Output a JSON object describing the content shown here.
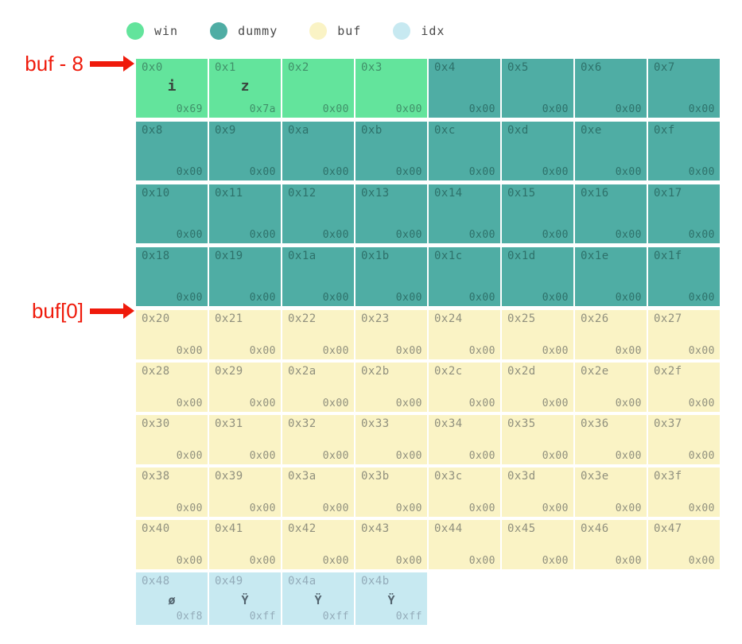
{
  "legend": {
    "items": [
      {
        "label": "win",
        "color": "#63e49c"
      },
      {
        "label": "dummy",
        "color": "#4fada4"
      },
      {
        "label": "buf",
        "color": "#faf3c5"
      },
      {
        "label": "idx",
        "color": "#c7e9f1"
      }
    ]
  },
  "annotations": [
    {
      "label": "buf - 8",
      "target": "0x0"
    },
    {
      "label": "buf[0]",
      "target": "0x20"
    }
  ],
  "colors": {
    "win": "#63e49c",
    "dummy": "#4fada4",
    "buf": "#faf3c5",
    "idx": "#c7e9f1",
    "annotation_red": "#ef1a0b"
  },
  "grid": {
    "rows": [
      {
        "size": "tall",
        "cells": [
          {
            "addr": "0x0",
            "char": "i",
            "value": "0x69",
            "region": "win"
          },
          {
            "addr": "0x1",
            "char": "z",
            "value": "0x7a",
            "region": "win"
          },
          {
            "addr": "0x2",
            "char": "",
            "value": "0x00",
            "region": "win"
          },
          {
            "addr": "0x3",
            "char": "",
            "value": "0x00",
            "region": "win"
          },
          {
            "addr": "0x4",
            "char": "",
            "value": "0x00",
            "region": "dummy"
          },
          {
            "addr": "0x5",
            "char": "",
            "value": "0x00",
            "region": "dummy"
          },
          {
            "addr": "0x6",
            "char": "",
            "value": "0x00",
            "region": "dummy"
          },
          {
            "addr": "0x7",
            "char": "",
            "value": "0x00",
            "region": "dummy"
          }
        ]
      },
      {
        "size": "tall",
        "cells": [
          {
            "addr": "0x8",
            "char": "",
            "value": "0x00",
            "region": "dummy"
          },
          {
            "addr": "0x9",
            "char": "",
            "value": "0x00",
            "region": "dummy"
          },
          {
            "addr": "0xa",
            "char": "",
            "value": "0x00",
            "region": "dummy"
          },
          {
            "addr": "0xb",
            "char": "",
            "value": "0x00",
            "region": "dummy"
          },
          {
            "addr": "0xc",
            "char": "",
            "value": "0x00",
            "region": "dummy"
          },
          {
            "addr": "0xd",
            "char": "",
            "value": "0x00",
            "region": "dummy"
          },
          {
            "addr": "0xe",
            "char": "",
            "value": "0x00",
            "region": "dummy"
          },
          {
            "addr": "0xf",
            "char": "",
            "value": "0x00",
            "region": "dummy"
          }
        ]
      },
      {
        "size": "tall",
        "cells": [
          {
            "addr": "0x10",
            "char": "",
            "value": "0x00",
            "region": "dummy"
          },
          {
            "addr": "0x11",
            "char": "",
            "value": "0x00",
            "region": "dummy"
          },
          {
            "addr": "0x12",
            "char": "",
            "value": "0x00",
            "region": "dummy"
          },
          {
            "addr": "0x13",
            "char": "",
            "value": "0x00",
            "region": "dummy"
          },
          {
            "addr": "0x14",
            "char": "",
            "value": "0x00",
            "region": "dummy"
          },
          {
            "addr": "0x15",
            "char": "",
            "value": "0x00",
            "region": "dummy"
          },
          {
            "addr": "0x16",
            "char": "",
            "value": "0x00",
            "region": "dummy"
          },
          {
            "addr": "0x17",
            "char": "",
            "value": "0x00",
            "region": "dummy"
          }
        ]
      },
      {
        "size": "tall",
        "cells": [
          {
            "addr": "0x18",
            "char": "",
            "value": "0x00",
            "region": "dummy"
          },
          {
            "addr": "0x19",
            "char": "",
            "value": "0x00",
            "region": "dummy"
          },
          {
            "addr": "0x1a",
            "char": "",
            "value": "0x00",
            "region": "dummy"
          },
          {
            "addr": "0x1b",
            "char": "",
            "value": "0x00",
            "region": "dummy"
          },
          {
            "addr": "0x1c",
            "char": "",
            "value": "0x00",
            "region": "dummy"
          },
          {
            "addr": "0x1d",
            "char": "",
            "value": "0x00",
            "region": "dummy"
          },
          {
            "addr": "0x1e",
            "char": "",
            "value": "0x00",
            "region": "dummy"
          },
          {
            "addr": "0x1f",
            "char": "",
            "value": "0x00",
            "region": "dummy"
          }
        ]
      },
      {
        "size": "short",
        "cells": [
          {
            "addr": "0x20",
            "char": "",
            "value": "0x00",
            "region": "buf"
          },
          {
            "addr": "0x21",
            "char": "",
            "value": "0x00",
            "region": "buf"
          },
          {
            "addr": "0x22",
            "char": "",
            "value": "0x00",
            "region": "buf"
          },
          {
            "addr": "0x23",
            "char": "",
            "value": "0x00",
            "region": "buf"
          },
          {
            "addr": "0x24",
            "char": "",
            "value": "0x00",
            "region": "buf"
          },
          {
            "addr": "0x25",
            "char": "",
            "value": "0x00",
            "region": "buf"
          },
          {
            "addr": "0x26",
            "char": "",
            "value": "0x00",
            "region": "buf"
          },
          {
            "addr": "0x27",
            "char": "",
            "value": "0x00",
            "region": "buf"
          }
        ]
      },
      {
        "size": "short",
        "cells": [
          {
            "addr": "0x28",
            "char": "",
            "value": "0x00",
            "region": "buf"
          },
          {
            "addr": "0x29",
            "char": "",
            "value": "0x00",
            "region": "buf"
          },
          {
            "addr": "0x2a",
            "char": "",
            "value": "0x00",
            "region": "buf"
          },
          {
            "addr": "0x2b",
            "char": "",
            "value": "0x00",
            "region": "buf"
          },
          {
            "addr": "0x2c",
            "char": "",
            "value": "0x00",
            "region": "buf"
          },
          {
            "addr": "0x2d",
            "char": "",
            "value": "0x00",
            "region": "buf"
          },
          {
            "addr": "0x2e",
            "char": "",
            "value": "0x00",
            "region": "buf"
          },
          {
            "addr": "0x2f",
            "char": "",
            "value": "0x00",
            "region": "buf"
          }
        ]
      },
      {
        "size": "short",
        "cells": [
          {
            "addr": "0x30",
            "char": "",
            "value": "0x00",
            "region": "buf"
          },
          {
            "addr": "0x31",
            "char": "",
            "value": "0x00",
            "region": "buf"
          },
          {
            "addr": "0x32",
            "char": "",
            "value": "0x00",
            "region": "buf"
          },
          {
            "addr": "0x33",
            "char": "",
            "value": "0x00",
            "region": "buf"
          },
          {
            "addr": "0x34",
            "char": "",
            "value": "0x00",
            "region": "buf"
          },
          {
            "addr": "0x35",
            "char": "",
            "value": "0x00",
            "region": "buf"
          },
          {
            "addr": "0x36",
            "char": "",
            "value": "0x00",
            "region": "buf"
          },
          {
            "addr": "0x37",
            "char": "",
            "value": "0x00",
            "region": "buf"
          }
        ]
      },
      {
        "size": "short",
        "cells": [
          {
            "addr": "0x38",
            "char": "",
            "value": "0x00",
            "region": "buf"
          },
          {
            "addr": "0x39",
            "char": "",
            "value": "0x00",
            "region": "buf"
          },
          {
            "addr": "0x3a",
            "char": "",
            "value": "0x00",
            "region": "buf"
          },
          {
            "addr": "0x3b",
            "char": "",
            "value": "0x00",
            "region": "buf"
          },
          {
            "addr": "0x3c",
            "char": "",
            "value": "0x00",
            "region": "buf"
          },
          {
            "addr": "0x3d",
            "char": "",
            "value": "0x00",
            "region": "buf"
          },
          {
            "addr": "0x3e",
            "char": "",
            "value": "0x00",
            "region": "buf"
          },
          {
            "addr": "0x3f",
            "char": "",
            "value": "0x00",
            "region": "buf"
          }
        ]
      },
      {
        "size": "short",
        "cells": [
          {
            "addr": "0x40",
            "char": "",
            "value": "0x00",
            "region": "buf"
          },
          {
            "addr": "0x41",
            "char": "",
            "value": "0x00",
            "region": "buf"
          },
          {
            "addr": "0x42",
            "char": "",
            "value": "0x00",
            "region": "buf"
          },
          {
            "addr": "0x43",
            "char": "",
            "value": "0x00",
            "region": "buf"
          },
          {
            "addr": "0x44",
            "char": "",
            "value": "0x00",
            "region": "buf"
          },
          {
            "addr": "0x45",
            "char": "",
            "value": "0x00",
            "region": "buf"
          },
          {
            "addr": "0x46",
            "char": "",
            "value": "0x00",
            "region": "buf"
          },
          {
            "addr": "0x47",
            "char": "",
            "value": "0x00",
            "region": "buf"
          }
        ]
      },
      {
        "size": "tail",
        "cells": [
          {
            "addr": "0x48",
            "char": "ø",
            "value": "0xf8",
            "region": "idx"
          },
          {
            "addr": "0x49",
            "char": "Ÿ",
            "value": "0xff",
            "region": "idx"
          },
          {
            "addr": "0x4a",
            "char": "Ÿ",
            "value": "0xff",
            "region": "idx"
          },
          {
            "addr": "0x4b",
            "char": "Ÿ",
            "value": "0xff",
            "region": "idx"
          }
        ]
      }
    ]
  }
}
